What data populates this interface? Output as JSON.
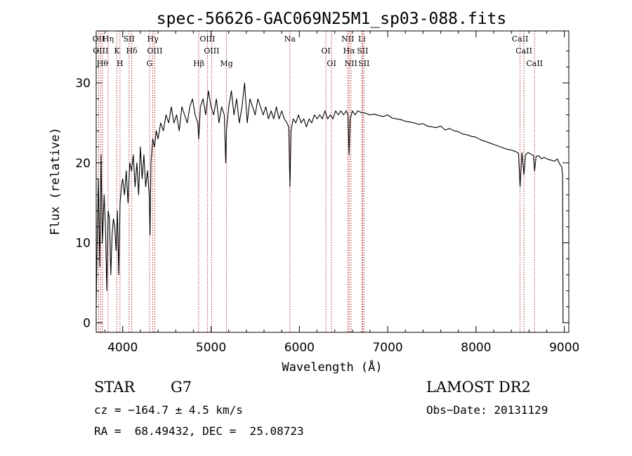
{
  "chart_data": {
    "type": "line",
    "title": "spec-56626-GAC069N25M1_sp03-088.fits",
    "xlabel": "Wavelength (Å)",
    "ylabel": "Flux (relative)",
    "xlim": [
      3700,
      9050
    ],
    "ylim": [
      -1.2,
      36.5
    ],
    "xticks": [
      4000,
      5000,
      6000,
      7000,
      8000,
      9000
    ],
    "yticks": [
      0,
      10,
      20,
      30
    ],
    "line_color": "#000000",
    "marker_color": "#b03030",
    "series": [
      {
        "x": [
          3700,
          3712,
          3725,
          3740,
          3755,
          3770,
          3790,
          3805,
          3820,
          3835,
          3850,
          3865,
          3880,
          3895,
          3910,
          3925,
          3940,
          3955,
          3970,
          3985,
          4000,
          4020,
          4040,
          4060,
          4080,
          4100,
          4120,
          4140,
          4160,
          4180,
          4200,
          4220,
          4240,
          4260,
          4280,
          4300,
          4310,
          4320,
          4340,
          4360,
          4380,
          4400,
          4430,
          4460,
          4490,
          4520,
          4550,
          4580,
          4610,
          4640,
          4670,
          4700,
          4730,
          4760,
          4790,
          4820,
          4850,
          4861,
          4880,
          4910,
          4940,
          4970,
          5000,
          5030,
          5060,
          5090,
          5120,
          5150,
          5167,
          5175,
          5200,
          5230,
          5260,
          5290,
          5320,
          5350,
          5380,
          5410,
          5440,
          5470,
          5500,
          5530,
          5560,
          5590,
          5620,
          5650,
          5680,
          5710,
          5740,
          5770,
          5800,
          5830,
          5860,
          5880,
          5893,
          5905,
          5930,
          5960,
          5990,
          6020,
          6050,
          6080,
          6110,
          6140,
          6170,
          6200,
          6230,
          6260,
          6290,
          6320,
          6350,
          6380,
          6410,
          6440,
          6470,
          6500,
          6530,
          6550,
          6563,
          6575,
          6600,
          6630,
          6660,
          6700,
          6750,
          6800,
          6850,
          6900,
          6950,
          7000,
          7050,
          7100,
          7150,
          7200,
          7250,
          7300,
          7350,
          7400,
          7450,
          7500,
          7550,
          7600,
          7650,
          7700,
          7750,
          7800,
          7850,
          7900,
          7950,
          8000,
          8050,
          8100,
          8150,
          8200,
          8250,
          8300,
          8350,
          8400,
          8450,
          8480,
          8498,
          8520,
          8542,
          8560,
          8590,
          8620,
          8650,
          8662,
          8680,
          8710,
          8740,
          8770,
          8800,
          8830,
          8860,
          8890,
          8920,
          8950,
          8970,
          8980,
          8985
        ],
        "y": [
          2,
          11,
          18,
          7,
          21,
          10,
          16,
          12,
          4,
          14,
          13,
          6,
          11,
          13,
          12,
          9,
          14,
          6,
          15,
          17,
          18,
          16,
          19,
          15,
          20,
          19,
          21,
          17,
          20,
          16,
          22,
          18,
          21,
          17,
          19,
          16,
          11,
          20,
          23,
          22,
          24,
          23,
          25,
          24,
          26,
          25,
          27,
          25,
          26,
          24,
          27,
          26,
          25,
          27,
          28,
          26,
          25,
          23,
          27,
          28,
          26,
          29,
          27,
          26,
          28,
          25,
          27,
          26,
          20,
          24,
          27,
          29,
          26,
          28,
          25,
          27,
          30,
          25,
          28,
          27,
          26,
          28,
          27,
          26,
          27,
          25.5,
          26.5,
          25.5,
          27,
          25.5,
          26.5,
          25.5,
          25,
          24.5,
          17,
          24,
          25.5,
          25,
          26,
          25,
          25.5,
          24.5,
          25.5,
          25,
          26,
          25.5,
          26,
          25.5,
          26.5,
          25.5,
          26,
          25.5,
          26.5,
          26,
          26.5,
          26,
          26.5,
          26,
          21,
          25.5,
          26.5,
          26,
          26.5,
          26.3,
          26.2,
          26,
          26.1,
          25.9,
          25.8,
          26,
          25.6,
          25.5,
          25.4,
          25.2,
          25.1,
          25,
          24.8,
          24.9,
          24.6,
          24.5,
          24.4,
          24.6,
          24.1,
          24.3,
          24,
          23.9,
          23.6,
          23.5,
          23.3,
          23.2,
          22.9,
          22.7,
          22.5,
          22.3,
          22.1,
          21.9,
          21.7,
          21.6,
          21.4,
          21.2,
          17,
          21.3,
          18.5,
          21,
          21.3,
          21.1,
          20.9,
          19,
          20.8,
          20.9,
          20.5,
          20.7,
          20.5,
          20.4,
          20.3,
          20.2,
          20.5,
          19.8,
          19.5,
          18.5,
          0
        ]
      }
    ],
    "line_markers": [
      {
        "wavelength": 3727,
        "labels": [
          "OII"
        ]
      },
      {
        "wavelength": 3750,
        "labels": [
          "OIII"
        ]
      },
      {
        "wavelength": 3771,
        "labels": [
          "Hθ"
        ]
      },
      {
        "wavelength": 3835,
        "labels": [
          "Hη"
        ]
      },
      {
        "wavelength": 3934,
        "labels": [
          "K"
        ]
      },
      {
        "wavelength": 3969,
        "labels": [
          "H"
        ]
      },
      {
        "wavelength": 4072,
        "labels": [
          "SII"
        ]
      },
      {
        "wavelength": 4102,
        "labels": [
          "Hδ"
        ]
      },
      {
        "wavelength": 4304,
        "labels": [
          "G"
        ]
      },
      {
        "wavelength": 4341,
        "labels": [
          "Hγ"
        ]
      },
      {
        "wavelength": 4363,
        "labels": [
          "OIII"
        ]
      },
      {
        "wavelength": 4861,
        "labels": [
          "Hβ"
        ]
      },
      {
        "wavelength": 4959,
        "labels": [
          "OIII"
        ]
      },
      {
        "wavelength": 5007,
        "labels": [
          "OIII"
        ]
      },
      {
        "wavelength": 5175,
        "labels": [
          "Mg"
        ]
      },
      {
        "wavelength": 5893,
        "labels": [
          "Na"
        ]
      },
      {
        "wavelength": 6300,
        "labels": [
          "OI"
        ]
      },
      {
        "wavelength": 6364,
        "labels": [
          "OI"
        ]
      },
      {
        "wavelength": 6548,
        "labels": [
          "NII"
        ]
      },
      {
        "wavelength": 6563,
        "labels": [
          "Hα"
        ]
      },
      {
        "wavelength": 6583,
        "labels": [
          "NII"
        ]
      },
      {
        "wavelength": 6708,
        "labels": [
          "Li"
        ]
      },
      {
        "wavelength": 6716,
        "labels": [
          "SII"
        ]
      },
      {
        "wavelength": 6731,
        "labels": [
          "SII"
        ]
      },
      {
        "wavelength": 8498,
        "labels": [
          "CaII"
        ]
      },
      {
        "wavelength": 8542,
        "labels": [
          "CaII"
        ]
      },
      {
        "wavelength": 8662,
        "labels": [
          "CaII"
        ]
      }
    ]
  },
  "info": {
    "object_class": "STAR",
    "subclass": "G7",
    "survey": "LAMOST DR2",
    "redshift_text": "cz = −164.7 ± 4.5 km/s",
    "obs_date_text": "Obs−Date: 20131129",
    "coords_text": "RA =  68.49432, DEC =  25.08723"
  }
}
